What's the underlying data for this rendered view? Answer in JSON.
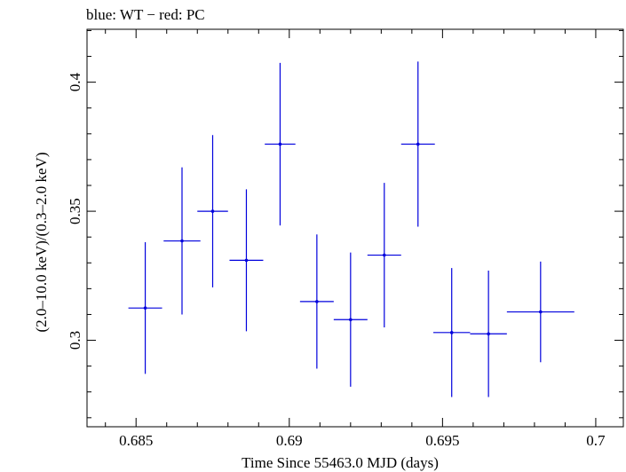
{
  "chart_data": {
    "type": "scatter",
    "title": "blue: WT − red: PC",
    "xlabel": "Time Since 55463.0 MJD (days)",
    "ylabel": "(2.0–10.0 keV)/(0.3–2.0 keV)",
    "xlim": [
      0.6834,
      0.7009
    ],
    "ylim": [
      0.2665,
      0.4205
    ],
    "x_ticks": [
      {
        "value": 0.685,
        "label": "0.685"
      },
      {
        "value": 0.69,
        "label": "0.69"
      },
      {
        "value": 0.695,
        "label": "0.695"
      },
      {
        "value": 0.7,
        "label": "0.7"
      }
    ],
    "y_ticks": [
      {
        "value": 0.3,
        "label": "0.3"
      },
      {
        "value": 0.35,
        "label": "0.35"
      },
      {
        "value": 0.4,
        "label": "0.4"
      }
    ],
    "series": [
      {
        "name": "WT",
        "color": "#0000dd",
        "points": [
          {
            "x": 0.6853,
            "xerr": 0.00055,
            "y": 0.3125,
            "yerr": 0.0255
          },
          {
            "x": 0.6865,
            "xerr": 0.0006,
            "y": 0.3385,
            "yerr": 0.0285
          },
          {
            "x": 0.6875,
            "xerr": 0.0005,
            "y": 0.35,
            "yerr": 0.0295
          },
          {
            "x": 0.6886,
            "xerr": 0.00055,
            "y": 0.331,
            "yerr": 0.0275
          },
          {
            "x": 0.6897,
            "xerr": 0.0005,
            "y": 0.376,
            "yerr": 0.0315
          },
          {
            "x": 0.6909,
            "xerr": 0.00055,
            "y": 0.315,
            "yerr": 0.026
          },
          {
            "x": 0.692,
            "xerr": 0.00055,
            "y": 0.308,
            "yerr": 0.026
          },
          {
            "x": 0.6931,
            "xerr": 0.00055,
            "y": 0.333,
            "yerr": 0.028
          },
          {
            "x": 0.6942,
            "xerr": 0.00055,
            "y": 0.376,
            "yerr": 0.032
          },
          {
            "x": 0.6953,
            "xerr": 0.0006,
            "y": 0.303,
            "yerr": 0.025
          },
          {
            "x": 0.6965,
            "xerr": 0.0006,
            "y": 0.3025,
            "yerr": 0.0245
          },
          {
            "x": 0.6982,
            "xerr": 0.0011,
            "y": 0.311,
            "yerr": 0.0195
          }
        ]
      }
    ]
  }
}
